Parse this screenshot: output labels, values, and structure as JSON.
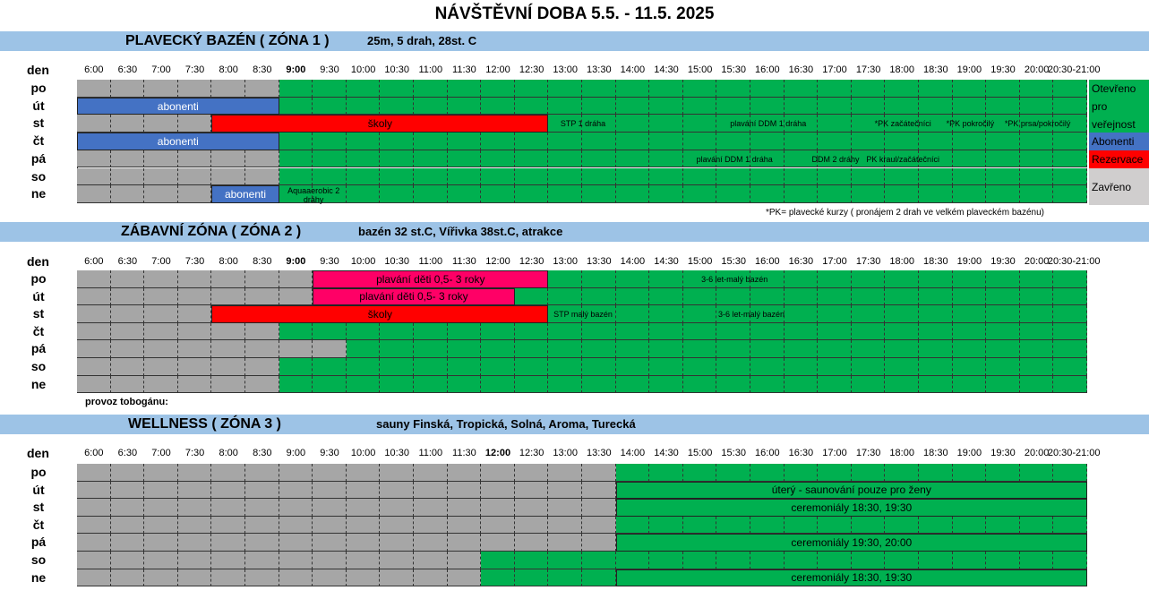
{
  "title": "NÁVŠTĚVNÍ DOBA   5.5. - 11.5. 2025",
  "days": [
    "po",
    "út",
    "st",
    "čt",
    "pá",
    "so",
    "ne"
  ],
  "den_label": "den",
  "colors": {
    "green": "#00b050",
    "gray": "#a6a6a6",
    "blue": "#4472c4",
    "red": "#ff0000",
    "pink": "#ff0066"
  },
  "zones": [
    {
      "name": "PLAVECKÝ BAZÉN  ( ZÓNA 1 )",
      "desc": "25m, 5 drah, 28st. C",
      "times": [
        "6:00",
        "6:30",
        "7:00",
        "7:30",
        "8:00",
        "8:30",
        "9:00",
        "9:30",
        "10:00",
        "10:30",
        "11:00",
        "11:30",
        "12:00",
        "12:30",
        "13:00",
        "13:30",
        "14:00",
        "14:30",
        "15:00",
        "15:30",
        "16:00",
        "16:30",
        "17:00",
        "17:30",
        "18:00",
        "18:30",
        "19:00",
        "19:30",
        "20:00",
        "20:30-21:00"
      ],
      "bold_times": [
        6
      ],
      "grid_open_from": 6,
      "bars": [
        {
          "day": 1,
          "s": 0,
          "e": 6,
          "color": "blue",
          "text": "abonenti"
        },
        {
          "day": 2,
          "s": 4,
          "e": 14,
          "color": "red",
          "text": "školy"
        },
        {
          "day": 3,
          "s": 0,
          "e": 6,
          "color": "blue",
          "text": "abonenti"
        },
        {
          "day": 6,
          "s": 4,
          "e": 6,
          "color": "blue",
          "text": "abonenti"
        }
      ],
      "labels": [
        {
          "day": 2,
          "c": 15,
          "text": "STP 1 dráha"
        },
        {
          "day": 2,
          "c": 20.5,
          "text": "plavání DDM  1 dráha"
        },
        {
          "day": 2,
          "c": 24.5,
          "text": "*PK začátečníci"
        },
        {
          "day": 2,
          "c": 26.5,
          "text": "*PK pokročilý"
        },
        {
          "day": 2,
          "c": 28.5,
          "text": "*PK prsa/pokročilý"
        },
        {
          "day": 4,
          "c": 19.5,
          "text": "plavání DDM   1 dráha"
        },
        {
          "day": 4,
          "c": 22.5,
          "text": "DDM 2 dráhy"
        },
        {
          "day": 4,
          "c": 24.5,
          "text": "PK kraul/začátečníci"
        },
        {
          "day": 6,
          "c": 7,
          "text": "Aquaaerobic 2 dráhy"
        }
      ],
      "note": "*PK= plavecké kurzy ( pronájem 2 drah ve velkém plaveckém bazénu)"
    },
    {
      "name": "ZÁBAVNÍ ZÓNA  ( ZÓNA 2 )",
      "desc": "bazén 32 st.C, Vířivka 38st.C, atrakce",
      "times": [
        "6:00",
        "6:30",
        "7:00",
        "7:30",
        "8:00",
        "8:30",
        "9:00",
        "9:30",
        "10:00",
        "10:30",
        "11:00",
        "11:30",
        "12:00",
        "12:30",
        "13:00",
        "13:30",
        "14:00",
        "14:30",
        "15:00",
        "15:30",
        "16:00",
        "16:30",
        "17:00",
        "17:30",
        "18:00",
        "18:30",
        "19:00",
        "19:30",
        "20:00",
        "20:30-21:00"
      ],
      "bold_times": [
        6
      ],
      "bars": [
        {
          "day": 0,
          "s": 7,
          "e": 14,
          "color": "pink",
          "text": "plavání děti 0,5- 3 roky"
        },
        {
          "day": 1,
          "s": 7,
          "e": 13,
          "color": "pink",
          "text": "plavání děti 0,5- 3 roky"
        },
        {
          "day": 2,
          "s": 4,
          "e": 14,
          "color": "red",
          "text": "školy"
        }
      ],
      "labels": [
        {
          "day": 0,
          "c": 19.5,
          "text": "3-6 let-malý bazén"
        },
        {
          "day": 2,
          "c": 15,
          "text": "STP malý bazén"
        },
        {
          "day": 2,
          "c": 20,
          "text": "3-6 let-malý bazén"
        }
      ],
      "note": "provoz tobogánu:"
    },
    {
      "name": "WELLNESS  ( ZÓNA 3 )",
      "desc": "sauny Finská, Tropická, Solná, Aroma, Turecká",
      "times": [
        "6:00",
        "6:30",
        "7:00",
        "7:30",
        "8:00",
        "8:30",
        "9:00",
        "9:30",
        "10:00",
        "10:30",
        "11:00",
        "11:30",
        "12:00",
        "12:30",
        "13:00",
        "13:30",
        "14:00",
        "14:30",
        "15:00",
        "15:30",
        "16:00",
        "16:30",
        "17:00",
        "17:30",
        "18:00",
        "18:30",
        "19:00",
        "19:30",
        "20:00",
        "20:30-21:00"
      ],
      "bold_times": [
        12
      ],
      "bars": [
        {
          "day": 1,
          "s": 16,
          "e": 30,
          "color": "green",
          "text": "úterý - saunování pouze pro ženy"
        },
        {
          "day": 2,
          "s": 16,
          "e": 30,
          "color": "green",
          "text": "ceremoniály  18:30,  19:30"
        },
        {
          "day": 4,
          "s": 16,
          "e": 30,
          "color": "green",
          "text": "ceremoniály  19:30,  20:00"
        },
        {
          "day": 6,
          "s": 16,
          "e": 30,
          "color": "green",
          "text": "ceremoniály  18:30,  19:30"
        }
      ],
      "labels": []
    }
  ],
  "legend": {
    "open": "Otevřeno pro veřejnost",
    "abonenti": "Abonenti",
    "rezervace": "Rezervace",
    "closed": "Zavřeno"
  }
}
